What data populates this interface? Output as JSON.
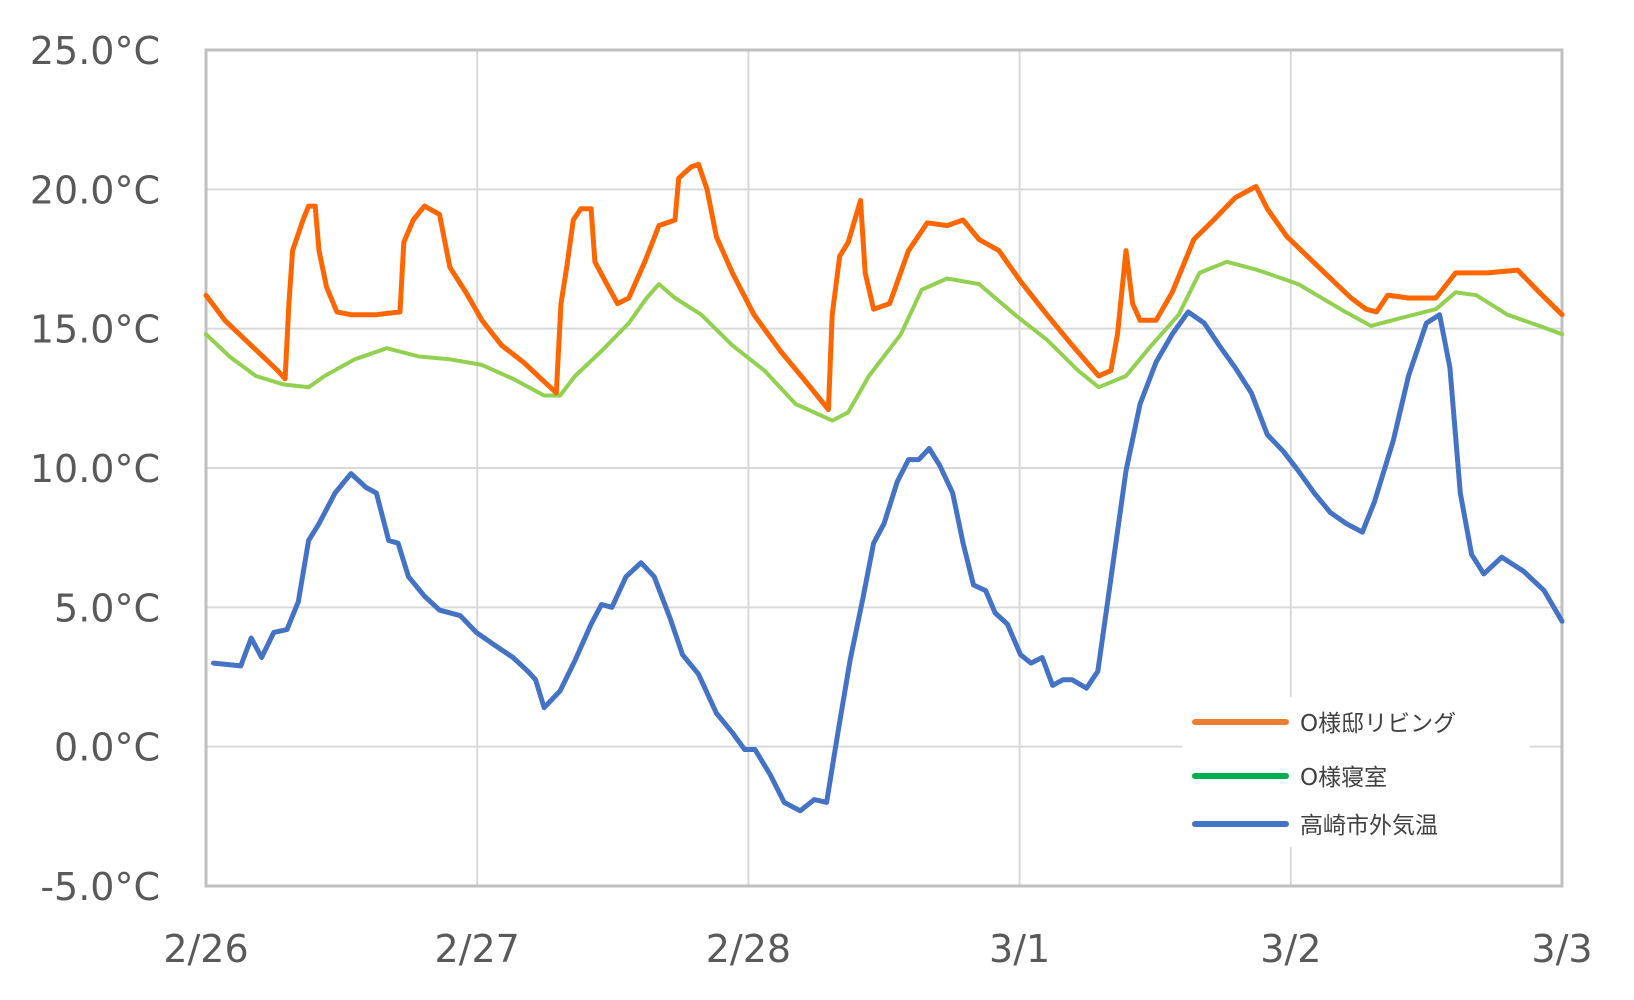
{
  "chart_data": {
    "type": "line",
    "title": "",
    "xlabel": "",
    "ylabel": "",
    "x_tick_labels": [
      "2/26",
      "2/27",
      "2/28",
      "3/1",
      "3/2",
      "3/3"
    ],
    "y_tick_labels": [
      "25.0°C",
      "20.0°C",
      "15.0°C",
      "10.0°C",
      "5.0°C",
      "0.0°C",
      "-5.0°C"
    ],
    "ylim": [
      -5,
      25
    ],
    "xlim": [
      "2/26 00:00",
      "3/3 00:00"
    ],
    "grid": "vertical and horizontal major gridlines",
    "legend_position": "bottom-right inside plot",
    "series": [
      {
        "name": "O様邸リビング",
        "color": "#ff6600",
        "legend_color": "#ed7d31",
        "points": [
          [
            "2/26 00:00",
            16.2
          ],
          [
            "2/26 01:40",
            15.3
          ],
          [
            "2/26 04:00",
            14.4
          ],
          [
            "2/26 06:20",
            13.5
          ],
          [
            "2/26 07:00",
            13.2
          ],
          [
            "2/26 07:20",
            15.9
          ],
          [
            "2/26 07:40",
            17.8
          ],
          [
            "2/26 08:35",
            18.9
          ],
          [
            "2/26 09:05",
            19.4
          ],
          [
            "2/26 09:40",
            19.4
          ],
          [
            "2/26 10:00",
            17.8
          ],
          [
            "2/26 10:40",
            16.5
          ],
          [
            "2/26 11:35",
            15.6
          ],
          [
            "2/26 12:50",
            15.5
          ],
          [
            "2/26 15:05",
            15.5
          ],
          [
            "2/26 17:10",
            15.6
          ],
          [
            "2/26 17:30",
            18.1
          ],
          [
            "2/26 18:20",
            18.9
          ],
          [
            "2/26 19:20",
            19.4
          ],
          [
            "2/26 20:40",
            19.1
          ],
          [
            "2/26 21:35",
            17.2
          ],
          [
            "2/26 23:00",
            16.3
          ],
          [
            "2/27 00:25",
            15.3
          ],
          [
            "2/27 02:10",
            14.4
          ],
          [
            "2/27 04:05",
            13.8
          ],
          [
            "2/27 05:55",
            13.1
          ],
          [
            "2/27 07:00",
            12.7
          ],
          [
            "2/27 07:25",
            15.9
          ],
          [
            "2/27 07:55",
            17.2
          ],
          [
            "2/27 08:30",
            18.9
          ],
          [
            "2/27 09:10",
            19.3
          ],
          [
            "2/27 10:05",
            19.3
          ],
          [
            "2/27 10:25",
            17.4
          ],
          [
            "2/27 11:20",
            16.7
          ],
          [
            "2/27 12:25",
            15.9
          ],
          [
            "2/27 13:25",
            16.1
          ],
          [
            "2/27 14:50",
            17.4
          ],
          [
            "2/27 16:05",
            18.7
          ],
          [
            "2/27 17:30",
            18.9
          ],
          [
            "2/27 17:50",
            20.4
          ],
          [
            "2/27 18:55",
            20.8
          ],
          [
            "2/27 19:35",
            20.9
          ],
          [
            "2/27 20:20",
            20.0
          ],
          [
            "2/27 21:10",
            18.3
          ],
          [
            "2/27 22:35",
            17.0
          ],
          [
            "2/28 00:30",
            15.5
          ],
          [
            "2/28 02:50",
            14.2
          ],
          [
            "2/28 05:05",
            13.1
          ],
          [
            "2/28 07:05",
            12.1
          ],
          [
            "2/28 07:25",
            15.5
          ],
          [
            "2/28 08:05",
            17.6
          ],
          [
            "2/28 08:50",
            18.1
          ],
          [
            "2/28 09:55",
            19.6
          ],
          [
            "2/28 10:20",
            17.0
          ],
          [
            "2/28 11:05",
            15.7
          ],
          [
            "2/28 12:30",
            15.9
          ],
          [
            "2/28 14:10",
            17.8
          ],
          [
            "2/28 15:50",
            18.8
          ],
          [
            "2/28 17:35",
            18.7
          ],
          [
            "2/28 19:00",
            18.9
          ],
          [
            "2/28 20:25",
            18.2
          ],
          [
            "2/28 22:10",
            17.8
          ],
          [
            "3/1 00:05",
            16.7
          ],
          [
            "3/1 02:25",
            15.5
          ],
          [
            "3/1 04:40",
            14.4
          ],
          [
            "3/1 07:00",
            13.3
          ],
          [
            "3/1 08:05",
            13.5
          ],
          [
            "3/1 08:40",
            14.8
          ],
          [
            "3/1 09:25",
            17.8
          ],
          [
            "3/1 10:00",
            15.9
          ],
          [
            "3/1 10:40",
            15.3
          ],
          [
            "3/1 12:05",
            15.3
          ],
          [
            "3/1 13:30",
            16.3
          ],
          [
            "3/1 15:25",
            18.2
          ],
          [
            "3/1 17:10",
            18.9
          ],
          [
            "3/1 19:05",
            19.7
          ],
          [
            "3/1 20:55",
            20.1
          ],
          [
            "3/1 21:55",
            19.3
          ],
          [
            "3/1 23:40",
            18.3
          ],
          [
            "3/2 02:30",
            17.2
          ],
          [
            "3/2 05:20",
            16.1
          ],
          [
            "3/2 06:40",
            15.7
          ],
          [
            "3/2 07:35",
            15.6
          ],
          [
            "3/2 08:35",
            16.2
          ],
          [
            "3/2 10:25",
            16.1
          ],
          [
            "3/2 12:50",
            16.1
          ],
          [
            "3/2 14:35",
            17.0
          ],
          [
            "3/2 17:25",
            17.0
          ],
          [
            "3/2 20:05",
            17.1
          ],
          [
            "3/2 22:00",
            16.3
          ],
          [
            "3/3 00:00",
            15.5
          ]
        ]
      },
      {
        "name": "O様寝室",
        "color": "#92d050",
        "legend_color": "#00b050",
        "points": [
          [
            "2/26 00:00",
            14.8
          ],
          [
            "2/26 02:05",
            14.0
          ],
          [
            "2/26 04:25",
            13.3
          ],
          [
            "2/26 06:50",
            13.0
          ],
          [
            "2/26 09:05",
            12.9
          ],
          [
            "2/26 10:30",
            13.3
          ],
          [
            "2/26 13:10",
            13.9
          ],
          [
            "2/26 16:00",
            14.3
          ],
          [
            "2/26 18:50",
            14.0
          ],
          [
            "2/26 21:35",
            13.9
          ],
          [
            "2/27 00:25",
            13.7
          ],
          [
            "2/27 03:10",
            13.2
          ],
          [
            "2/27 05:55",
            12.6
          ],
          [
            "2/27 07:20",
            12.6
          ],
          [
            "2/27 08:40",
            13.3
          ],
          [
            "2/27 11:00",
            14.2
          ],
          [
            "2/27 13:25",
            15.2
          ],
          [
            "2/27 15:00",
            16.1
          ],
          [
            "2/27 16:05",
            16.6
          ],
          [
            "2/27 17:30",
            16.1
          ],
          [
            "2/27 19:50",
            15.5
          ],
          [
            "2/27 22:35",
            14.4
          ],
          [
            "2/28 01:25",
            13.5
          ],
          [
            "2/28 04:10",
            12.3
          ],
          [
            "2/28 07:25",
            11.7
          ],
          [
            "2/28 08:50",
            12.0
          ],
          [
            "2/28 10:40",
            13.3
          ],
          [
            "2/28 13:30",
            14.8
          ],
          [
            "2/28 15:20",
            16.4
          ],
          [
            "2/28 17:35",
            16.8
          ],
          [
            "2/28 20:25",
            16.6
          ],
          [
            "2/28 23:35",
            15.5
          ],
          [
            "3/1 02:25",
            14.6
          ],
          [
            "3/1 05:10",
            13.5
          ],
          [
            "3/1 07:00",
            12.9
          ],
          [
            "3/1 09:25",
            13.3
          ],
          [
            "3/1 11:40",
            14.4
          ],
          [
            "3/1 14:05",
            15.5
          ],
          [
            "3/1 15:55",
            17.0
          ],
          [
            "3/1 18:20",
            17.4
          ],
          [
            "3/1 21:05",
            17.1
          ],
          [
            "3/2 00:40",
            16.6
          ],
          [
            "3/2 04:25",
            15.7
          ],
          [
            "3/2 07:05",
            15.1
          ],
          [
            "3/2 09:55",
            15.4
          ],
          [
            "3/2 12:50",
            15.7
          ],
          [
            "3/2 14:35",
            16.3
          ],
          [
            "3/2 16:25",
            16.2
          ],
          [
            "3/2 19:10",
            15.5
          ],
          [
            "3/2 22:00",
            15.1
          ],
          [
            "3/3 00:00",
            14.8
          ]
        ]
      },
      {
        "name": "高崎市外気温",
        "color": "#4472c4",
        "legend_color": "#4472c4",
        "points": [
          [
            "2/26 00:40",
            3.0
          ],
          [
            "2/26 03:05",
            2.9
          ],
          [
            "2/26 04:00",
            3.9
          ],
          [
            "2/26 04:55",
            3.2
          ],
          [
            "2/26 06:00",
            4.1
          ],
          [
            "2/26 07:10",
            4.2
          ],
          [
            "2/26 08:10",
            5.2
          ],
          [
            "2/26 09:05",
            7.4
          ],
          [
            "2/26 10:00",
            8.0
          ],
          [
            "2/26 11:25",
            9.1
          ],
          [
            "2/26 12:50",
            9.8
          ],
          [
            "2/26 14:10",
            9.3
          ],
          [
            "2/26 15:05",
            9.1
          ],
          [
            "2/26 16:10",
            7.4
          ],
          [
            "2/26 17:00",
            7.3
          ],
          [
            "2/26 17:55",
            6.1
          ],
          [
            "2/26 19:20",
            5.4
          ],
          [
            "2/26 20:40",
            4.9
          ],
          [
            "2/26 22:30",
            4.7
          ],
          [
            "2/26 23:55",
            4.1
          ],
          [
            "2/27 01:20",
            3.7
          ],
          [
            "2/27 03:10",
            3.2
          ],
          [
            "2/27 04:30",
            2.7
          ],
          [
            "2/27 05:10",
            2.4
          ],
          [
            "2/27 05:55",
            1.4
          ],
          [
            "2/27 07:20",
            2.0
          ],
          [
            "2/27 08:40",
            3.1
          ],
          [
            "2/27 10:05",
            4.4
          ],
          [
            "2/27 11:00",
            5.1
          ],
          [
            "2/27 11:55",
            5.0
          ],
          [
            "2/27 13:10",
            6.1
          ],
          [
            "2/27 14:30",
            6.6
          ],
          [
            "2/27 15:40",
            6.1
          ],
          [
            "2/27 17:05",
            4.6
          ],
          [
            "2/27 18:10",
            3.3
          ],
          [
            "2/27 19:35",
            2.6
          ],
          [
            "2/27 21:10",
            1.2
          ],
          [
            "2/27 22:35",
            0.5
          ],
          [
            "2/27 23:40",
            -0.1
          ],
          [
            "2/28 00:35",
            -0.1
          ],
          [
            "2/28 01:55",
            -1.0
          ],
          [
            "2/28 03:10",
            -2.0
          ],
          [
            "2/28 04:35",
            -2.3
          ],
          [
            "2/28 05:50",
            -1.9
          ],
          [
            "2/28 06:55",
            -2.0
          ],
          [
            "2/28 07:55",
            0.5
          ],
          [
            "2/28 09:00",
            3.1
          ],
          [
            "2/28 10:10",
            5.4
          ],
          [
            "2/28 11:05",
            7.3
          ],
          [
            "2/28 12:00",
            8.0
          ],
          [
            "2/28 13:10",
            9.5
          ],
          [
            "2/28 14:10",
            10.3
          ],
          [
            "2/28 15:05",
            10.3
          ],
          [
            "2/28 16:00",
            10.7
          ],
          [
            "2/28 16:55",
            10.1
          ],
          [
            "2/28 18:05",
            9.1
          ],
          [
            "2/28 19:00",
            7.3
          ],
          [
            "2/28 19:55",
            5.8
          ],
          [
            "2/28 21:00",
            5.6
          ],
          [
            "2/28 21:50",
            4.8
          ],
          [
            "2/28 22:55",
            4.4
          ],
          [
            "3/1 00:05",
            3.3
          ],
          [
            "3/1 01:00",
            3.0
          ],
          [
            "3/1 02:00",
            3.2
          ],
          [
            "3/1 02:55",
            2.2
          ],
          [
            "3/1 03:50",
            2.4
          ],
          [
            "3/1 04:40",
            2.4
          ],
          [
            "3/1 05:55",
            2.1
          ],
          [
            "3/1 06:55",
            2.7
          ],
          [
            "3/1 08:00",
            5.8
          ],
          [
            "3/1 09:25",
            9.9
          ],
          [
            "3/1 10:40",
            12.3
          ],
          [
            "3/1 12:05",
            13.8
          ],
          [
            "3/1 13:30",
            14.8
          ],
          [
            "3/1 14:55",
            15.6
          ],
          [
            "3/1 16:20",
            15.2
          ],
          [
            "3/1 17:40",
            14.4
          ],
          [
            "3/1 19:05",
            13.6
          ],
          [
            "3/1 20:30",
            12.7
          ],
          [
            "3/1 21:55",
            11.2
          ],
          [
            "3/1 23:20",
            10.6
          ],
          [
            "3/2 00:40",
            9.9
          ],
          [
            "3/2 02:05",
            9.1
          ],
          [
            "3/2 03:30",
            8.4
          ],
          [
            "3/2 04:55",
            8.0
          ],
          [
            "3/2 06:20",
            7.7
          ],
          [
            "3/2 07:25",
            8.8
          ],
          [
            "3/2 09:05",
            11.0
          ],
          [
            "3/2 10:25",
            13.3
          ],
          [
            "3/2 12:00",
            15.2
          ],
          [
            "3/2 13:10",
            15.5
          ],
          [
            "3/2 14:05",
            13.6
          ],
          [
            "3/2 15:00",
            9.1
          ],
          [
            "3/2 16:00",
            6.9
          ],
          [
            "3/2 17:05",
            6.2
          ],
          [
            "3/2 18:40",
            6.8
          ],
          [
            "3/2 20:35",
            6.3
          ],
          [
            "3/2 22:25",
            5.6
          ],
          [
            "3/3 00:00",
            4.5
          ]
        ]
      }
    ]
  }
}
